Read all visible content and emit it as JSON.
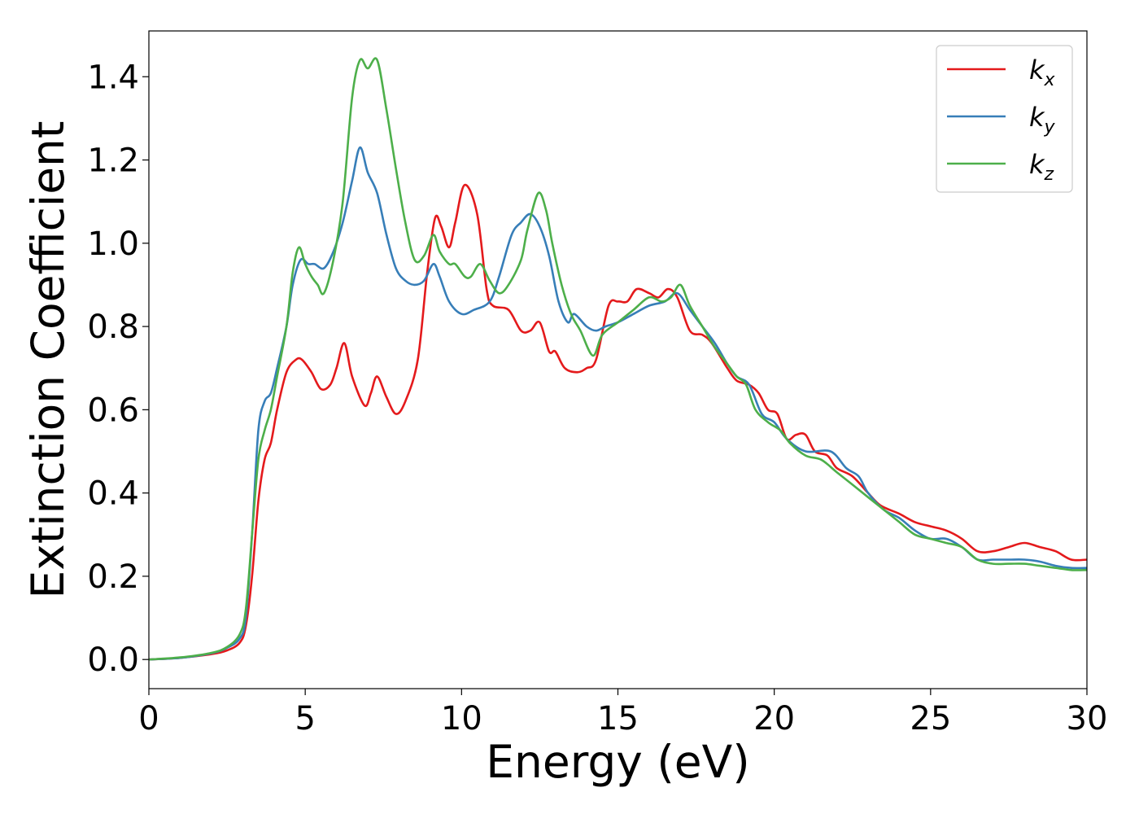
{
  "chart_data": {
    "type": "line",
    "title": "",
    "xlabel": "Energy (eV)",
    "ylabel": "Extinction Coefficient",
    "xlim": [
      0,
      30
    ],
    "ylim": [
      -0.07,
      1.51
    ],
    "xticks": [
      0,
      5,
      10,
      15,
      20,
      25,
      30
    ],
    "xtick_labels": [
      "0",
      "5",
      "10",
      "15",
      "20",
      "25",
      "30"
    ],
    "yticks": [
      0.0,
      0.2,
      0.4,
      0.6,
      0.8,
      1.0,
      1.2,
      1.4
    ],
    "ytick_labels": [
      "0.0",
      "0.2",
      "0.4",
      "0.6",
      "0.8",
      "1.0",
      "1.2",
      "1.4"
    ],
    "grid": false,
    "legend": "top-right",
    "series": [
      {
        "name": "k_x",
        "legend_base": "k",
        "legend_sub": "x",
        "color": "#e41a1c",
        "points": [
          [
            0,
            0
          ],
          [
            1,
            0.004
          ],
          [
            2,
            0.013
          ],
          [
            2.5,
            0.022
          ],
          [
            2.9,
            0.04
          ],
          [
            3.1,
            0.08
          ],
          [
            3.3,
            0.2
          ],
          [
            3.5,
            0.38
          ],
          [
            3.7,
            0.48
          ],
          [
            3.9,
            0.52
          ],
          [
            4.1,
            0.6
          ],
          [
            4.4,
            0.69
          ],
          [
            4.7,
            0.72
          ],
          [
            4.9,
            0.72
          ],
          [
            5.2,
            0.69
          ],
          [
            5.5,
            0.65
          ],
          [
            5.8,
            0.66
          ],
          [
            6.0,
            0.7
          ],
          [
            6.25,
            0.76
          ],
          [
            6.5,
            0.68
          ],
          [
            6.9,
            0.61
          ],
          [
            7.1,
            0.64
          ],
          [
            7.3,
            0.68
          ],
          [
            7.6,
            0.63
          ],
          [
            7.9,
            0.59
          ],
          [
            8.2,
            0.62
          ],
          [
            8.6,
            0.72
          ],
          [
            8.9,
            0.93
          ],
          [
            9.15,
            1.06
          ],
          [
            9.35,
            1.04
          ],
          [
            9.6,
            0.99
          ],
          [
            9.8,
            1.05
          ],
          [
            10.1,
            1.14
          ],
          [
            10.5,
            1.07
          ],
          [
            10.8,
            0.89
          ],
          [
            11.0,
            0.85
          ],
          [
            11.5,
            0.84
          ],
          [
            11.9,
            0.79
          ],
          [
            12.2,
            0.79
          ],
          [
            12.5,
            0.81
          ],
          [
            12.8,
            0.74
          ],
          [
            13.0,
            0.74
          ],
          [
            13.3,
            0.7
          ],
          [
            13.7,
            0.69
          ],
          [
            14.0,
            0.7
          ],
          [
            14.3,
            0.72
          ],
          [
            14.7,
            0.85
          ],
          [
            15.0,
            0.86
          ],
          [
            15.3,
            0.86
          ],
          [
            15.6,
            0.89
          ],
          [
            16.0,
            0.88
          ],
          [
            16.3,
            0.87
          ],
          [
            16.6,
            0.89
          ],
          [
            16.9,
            0.87
          ],
          [
            17.3,
            0.79
          ],
          [
            17.7,
            0.78
          ],
          [
            18.0,
            0.76
          ],
          [
            18.5,
            0.7
          ],
          [
            18.8,
            0.67
          ],
          [
            19.2,
            0.66
          ],
          [
            19.5,
            0.64
          ],
          [
            19.8,
            0.6
          ],
          [
            20.1,
            0.59
          ],
          [
            20.4,
            0.53
          ],
          [
            20.7,
            0.54
          ],
          [
            21.0,
            0.54
          ],
          [
            21.3,
            0.5
          ],
          [
            21.7,
            0.49
          ],
          [
            22.0,
            0.46
          ],
          [
            22.5,
            0.44
          ],
          [
            23.0,
            0.4
          ],
          [
            23.4,
            0.37
          ],
          [
            24.0,
            0.35
          ],
          [
            24.5,
            0.33
          ],
          [
            25.0,
            0.32
          ],
          [
            25.5,
            0.31
          ],
          [
            26.0,
            0.29
          ],
          [
            26.5,
            0.26
          ],
          [
            27.0,
            0.26
          ],
          [
            27.5,
            0.27
          ],
          [
            28.0,
            0.28
          ],
          [
            28.5,
            0.27
          ],
          [
            29.0,
            0.26
          ],
          [
            29.5,
            0.24
          ],
          [
            30,
            0.24
          ]
        ]
      },
      {
        "name": "k_y",
        "legend_base": "k",
        "legend_sub": "y",
        "color": "#377eb8",
        "points": [
          [
            0,
            0
          ],
          [
            1,
            0.004
          ],
          [
            2,
            0.015
          ],
          [
            2.5,
            0.028
          ],
          [
            2.9,
            0.05
          ],
          [
            3.1,
            0.1
          ],
          [
            3.3,
            0.3
          ],
          [
            3.5,
            0.55
          ],
          [
            3.7,
            0.62
          ],
          [
            3.9,
            0.64
          ],
          [
            4.1,
            0.7
          ],
          [
            4.4,
            0.8
          ],
          [
            4.6,
            0.9
          ],
          [
            4.85,
            0.96
          ],
          [
            5.1,
            0.95
          ],
          [
            5.3,
            0.95
          ],
          [
            5.6,
            0.94
          ],
          [
            5.9,
            0.98
          ],
          [
            6.2,
            1.05
          ],
          [
            6.5,
            1.15
          ],
          [
            6.75,
            1.23
          ],
          [
            7.0,
            1.17
          ],
          [
            7.3,
            1.12
          ],
          [
            7.6,
            1.02
          ],
          [
            7.9,
            0.94
          ],
          [
            8.2,
            0.91
          ],
          [
            8.5,
            0.9
          ],
          [
            8.8,
            0.91
          ],
          [
            9.1,
            0.95
          ],
          [
            9.3,
            0.92
          ],
          [
            9.6,
            0.86
          ],
          [
            10.0,
            0.83
          ],
          [
            10.4,
            0.84
          ],
          [
            10.9,
            0.86
          ],
          [
            11.2,
            0.92
          ],
          [
            11.6,
            1.02
          ],
          [
            11.9,
            1.05
          ],
          [
            12.2,
            1.07
          ],
          [
            12.5,
            1.04
          ],
          [
            12.8,
            0.97
          ],
          [
            13.1,
            0.86
          ],
          [
            13.4,
            0.81
          ],
          [
            13.6,
            0.83
          ],
          [
            14.0,
            0.8
          ],
          [
            14.3,
            0.79
          ],
          [
            14.6,
            0.8
          ],
          [
            15.0,
            0.81
          ],
          [
            15.5,
            0.83
          ],
          [
            16.0,
            0.85
          ],
          [
            16.5,
            0.86
          ],
          [
            16.9,
            0.88
          ],
          [
            17.3,
            0.84
          ],
          [
            17.7,
            0.8
          ],
          [
            18.1,
            0.76
          ],
          [
            18.5,
            0.71
          ],
          [
            18.8,
            0.68
          ],
          [
            19.2,
            0.66
          ],
          [
            19.6,
            0.59
          ],
          [
            20.0,
            0.57
          ],
          [
            20.4,
            0.53
          ],
          [
            21.0,
            0.5
          ],
          [
            21.8,
            0.5
          ],
          [
            22.3,
            0.46
          ],
          [
            22.7,
            0.44
          ],
          [
            23.0,
            0.4
          ],
          [
            23.5,
            0.36
          ],
          [
            24.0,
            0.34
          ],
          [
            24.5,
            0.31
          ],
          [
            25.0,
            0.29
          ],
          [
            25.5,
            0.29
          ],
          [
            26.0,
            0.27
          ],
          [
            26.5,
            0.24
          ],
          [
            27.0,
            0.24
          ],
          [
            27.5,
            0.24
          ],
          [
            28.0,
            0.24
          ],
          [
            28.5,
            0.235
          ],
          [
            29.0,
            0.225
          ],
          [
            29.5,
            0.22
          ],
          [
            30,
            0.22
          ]
        ]
      },
      {
        "name": "k_z",
        "legend_base": "k",
        "legend_sub": "z",
        "color": "#4daf4a",
        "points": [
          [
            0,
            0
          ],
          [
            1,
            0.005
          ],
          [
            2,
            0.016
          ],
          [
            2.5,
            0.03
          ],
          [
            2.9,
            0.06
          ],
          [
            3.1,
            0.12
          ],
          [
            3.3,
            0.3
          ],
          [
            3.5,
            0.48
          ],
          [
            3.7,
            0.55
          ],
          [
            3.9,
            0.6
          ],
          [
            4.1,
            0.68
          ],
          [
            4.4,
            0.8
          ],
          [
            4.6,
            0.93
          ],
          [
            4.8,
            0.99
          ],
          [
            5.0,
            0.95
          ],
          [
            5.2,
            0.92
          ],
          [
            5.4,
            0.9
          ],
          [
            5.6,
            0.88
          ],
          [
            5.9,
            0.96
          ],
          [
            6.2,
            1.1
          ],
          [
            6.5,
            1.35
          ],
          [
            6.75,
            1.44
          ],
          [
            7.0,
            1.42
          ],
          [
            7.3,
            1.44
          ],
          [
            7.6,
            1.32
          ],
          [
            7.9,
            1.18
          ],
          [
            8.2,
            1.05
          ],
          [
            8.5,
            0.96
          ],
          [
            8.8,
            0.97
          ],
          [
            9.1,
            1.02
          ],
          [
            9.3,
            0.98
          ],
          [
            9.6,
            0.95
          ],
          [
            9.8,
            0.95
          ],
          [
            10.1,
            0.92
          ],
          [
            10.3,
            0.92
          ],
          [
            10.6,
            0.95
          ],
          [
            10.9,
            0.91
          ],
          [
            11.2,
            0.88
          ],
          [
            11.5,
            0.9
          ],
          [
            11.9,
            0.96
          ],
          [
            12.1,
            1.03
          ],
          [
            12.45,
            1.12
          ],
          [
            12.7,
            1.08
          ],
          [
            12.9,
            1.0
          ],
          [
            13.2,
            0.9
          ],
          [
            13.5,
            0.83
          ],
          [
            13.8,
            0.79
          ],
          [
            14.2,
            0.73
          ],
          [
            14.5,
            0.78
          ],
          [
            15.0,
            0.81
          ],
          [
            15.5,
            0.84
          ],
          [
            16.0,
            0.87
          ],
          [
            16.4,
            0.86
          ],
          [
            16.7,
            0.87
          ],
          [
            17.0,
            0.9
          ],
          [
            17.3,
            0.85
          ],
          [
            17.7,
            0.8
          ],
          [
            18.1,
            0.75
          ],
          [
            18.5,
            0.71
          ],
          [
            18.8,
            0.68
          ],
          [
            19.1,
            0.66
          ],
          [
            19.4,
            0.6
          ],
          [
            19.8,
            0.57
          ],
          [
            20.2,
            0.55
          ],
          [
            20.5,
            0.52
          ],
          [
            21.0,
            0.49
          ],
          [
            21.5,
            0.48
          ],
          [
            22.0,
            0.45
          ],
          [
            22.5,
            0.42
          ],
          [
            23.0,
            0.39
          ],
          [
            23.5,
            0.36
          ],
          [
            24.0,
            0.33
          ],
          [
            24.5,
            0.3
          ],
          [
            25.0,
            0.29
          ],
          [
            25.5,
            0.28
          ],
          [
            26.0,
            0.27
          ],
          [
            26.5,
            0.24
          ],
          [
            27.0,
            0.23
          ],
          [
            27.5,
            0.23
          ],
          [
            28.0,
            0.23
          ],
          [
            28.5,
            0.225
          ],
          [
            29.0,
            0.22
          ],
          [
            29.5,
            0.215
          ],
          [
            30,
            0.215
          ]
        ]
      }
    ]
  }
}
